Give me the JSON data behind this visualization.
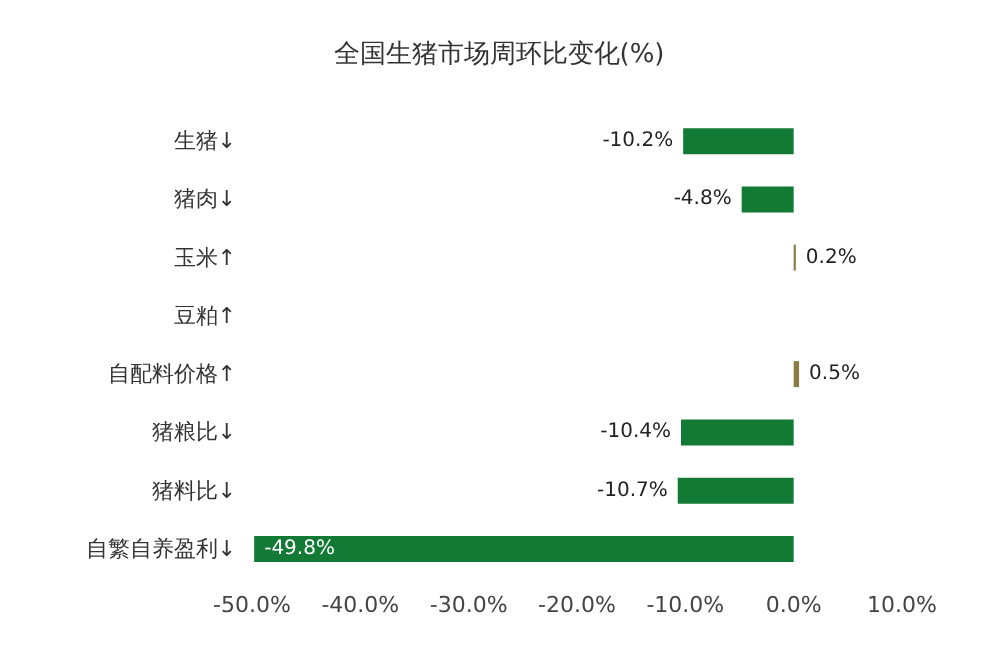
{
  "chart_data": {
    "type": "bar",
    "orientation": "horizontal",
    "title": "全国生猪市场周环比变化(%)",
    "categories": [
      "生猪↓",
      "猪肉↓",
      "玉米↑",
      "豆粕↑",
      "自配料价格↑",
      "猪粮比↓",
      "猪料比↓",
      "自繁自养盈利↓"
    ],
    "values": [
      -10.2,
      -4.8,
      0.2,
      null,
      0.5,
      -10.4,
      -10.7,
      -49.8
    ],
    "colors": [
      "#127a35",
      "#127a35",
      "#8c7b45",
      "#8c7b45",
      "#8c7b45",
      "#127a35",
      "#127a35",
      "#127a35"
    ],
    "value_labels": [
      "-10.2%",
      "-4.8%",
      "0.2%",
      null,
      "0.5%",
      "-10.4%",
      "-10.7%",
      "-49.8%"
    ],
    "xlim": [
      -50,
      10
    ],
    "xticks": [
      {
        "value": -50,
        "label": "-50.0%"
      },
      {
        "value": -40,
        "label": "-40.0%"
      },
      {
        "value": -30,
        "label": "-30.0%"
      },
      {
        "value": -20,
        "label": "-20.0%"
      },
      {
        "value": -10,
        "label": "-10.0%"
      },
      {
        "value": 0,
        "label": "0.0%"
      },
      {
        "value": 10,
        "label": "10.0%"
      }
    ],
    "grid": false
  }
}
